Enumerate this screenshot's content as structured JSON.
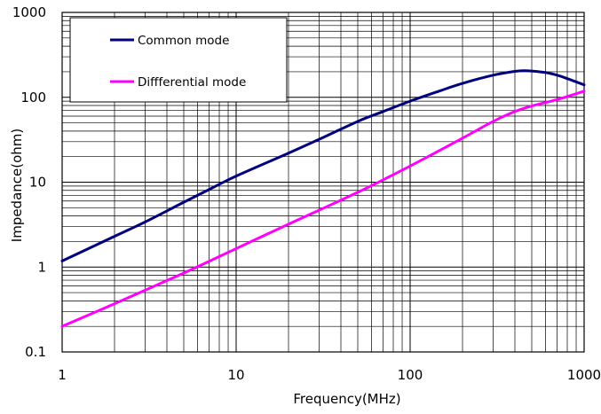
{
  "chart_data": {
    "type": "line",
    "title": "",
    "xlabel": "Frequency(MHz)",
    "ylabel": "Impedance(ohm)",
    "x_scale": "log",
    "y_scale": "log",
    "xlim": [
      1,
      1000
    ],
    "ylim": [
      0.1,
      1000
    ],
    "x_ticks": [
      1,
      10,
      100,
      1000
    ],
    "x_tick_labels": [
      "1",
      "10",
      "100",
      "1000"
    ],
    "y_ticks": [
      0.1,
      1,
      10,
      100,
      1000
    ],
    "y_tick_labels": [
      "0.1",
      "1",
      "10",
      "100",
      "1000"
    ],
    "grid": true,
    "legend_position": "top-left",
    "series": [
      {
        "name": "Common mode",
        "color": "#00007f",
        "x": [
          1,
          2,
          3,
          5,
          7,
          10,
          20,
          30,
          50,
          70,
          100,
          150,
          200,
          300,
          400,
          450,
          500,
          600,
          700,
          800,
          900,
          1000
        ],
        "y": [
          1.18,
          2.3,
          3.4,
          5.8,
          8.2,
          11.8,
          22,
          32,
          52,
          68,
          90,
          120,
          146,
          182,
          202,
          206,
          204,
          196,
          182,
          166,
          152,
          140
        ]
      },
      {
        "name": "Diffferential mode",
        "color": "#ff00ff",
        "x": [
          1,
          2,
          5,
          10,
          20,
          50,
          100,
          200,
          300,
          400,
          500,
          700,
          1000
        ],
        "y": [
          0.2,
          0.37,
          0.85,
          1.65,
          3.2,
          7.6,
          15.5,
          33,
          52,
          68,
          79,
          94,
          118
        ]
      }
    ]
  }
}
